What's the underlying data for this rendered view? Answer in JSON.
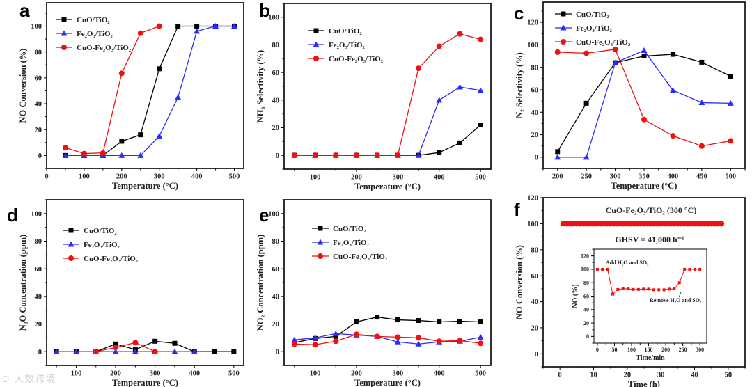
{
  "watermark": "大数跨境",
  "colors": {
    "CuO/TiO₂": "#000000",
    "Fe₂O₃/TiO₂": "#2b2bff",
    "CuO-Fe₂O₃/TiO₂": "#ee1111"
  },
  "chart_data": [
    {
      "id": "a",
      "letter": "a",
      "type": "line",
      "xlabel": "Temperature (°C)",
      "ylabel": "NO Conversion (%)",
      "xlim": [
        0,
        525
      ],
      "ylim": [
        -10,
        118
      ],
      "xticks": [
        0,
        100,
        200,
        300,
        400,
        500
      ],
      "yticks": [
        0,
        20,
        40,
        60,
        80,
        100
      ],
      "legend": "top-left",
      "series": [
        {
          "name": "CuO/TiO₂",
          "marker": "square",
          "x": [
            50,
            100,
            150,
            200,
            250,
            300,
            350,
            400,
            450,
            500
          ],
          "y": [
            0,
            0,
            0,
            11,
            16,
            67,
            100,
            100,
            100,
            100
          ]
        },
        {
          "name": "Fe₂O₃/TiO₂",
          "marker": "triangle",
          "x": [
            50,
            100,
            150,
            200,
            250,
            300,
            350,
            400,
            450,
            500
          ],
          "y": [
            0,
            0,
            0,
            0,
            0,
            15,
            45,
            96,
            100,
            100
          ]
        },
        {
          "name": "CuO-Fe₂O₃/TiO₂",
          "marker": "circle",
          "x": [
            50,
            100,
            150,
            200,
            250,
            300
          ],
          "y": [
            6,
            1.5,
            2,
            63.5,
            94.5,
            100
          ]
        }
      ]
    },
    {
      "id": "b",
      "letter": "b",
      "type": "line",
      "xlabel": "Temperature (°C)",
      "ylabel": "NH₃ Selectivity (%)",
      "xlim": [
        25,
        525
      ],
      "ylim": [
        -10,
        110
      ],
      "xticks": [
        100,
        200,
        300,
        400,
        500
      ],
      "yticks": [
        0,
        20,
        40,
        60,
        80,
        100
      ],
      "legend": "top-left",
      "series": [
        {
          "name": "CuO/TiO₂",
          "marker": "square",
          "x": [
            50,
            100,
            150,
            200,
            250,
            300,
            350,
            400,
            450,
            500
          ],
          "y": [
            0,
            0,
            0,
            0,
            0,
            0,
            0,
            2,
            9,
            22
          ]
        },
        {
          "name": "Fe₂O₃/TiO₂",
          "marker": "triangle",
          "x": [
            50,
            100,
            150,
            200,
            250,
            300,
            350,
            400,
            450,
            500
          ],
          "y": [
            0,
            0,
            0,
            0,
            0,
            0,
            0,
            40,
            49.5,
            47
          ]
        },
        {
          "name": "CuO-Fe₂O₃/TiO₂",
          "marker": "circle",
          "x": [
            50,
            100,
            150,
            200,
            250,
            300,
            350,
            400,
            450,
            500
          ],
          "y": [
            0,
            0,
            0,
            0,
            0,
            0,
            63,
            79,
            88,
            84
          ]
        }
      ]
    },
    {
      "id": "c",
      "letter": "c",
      "type": "line",
      "xlabel": "Temperature (°C)",
      "ylabel": "N₂ Selectivity (%)",
      "xlim": [
        175,
        525
      ],
      "ylim": [
        -10,
        138
      ],
      "xticks": [
        200,
        250,
        300,
        350,
        400,
        450,
        500
      ],
      "yticks": [
        0,
        20,
        40,
        60,
        80,
        100,
        120
      ],
      "legend": "top-left",
      "series": [
        {
          "name": "CuO/TiO₂",
          "marker": "square",
          "x": [
            200,
            250,
            300,
            350,
            400,
            450,
            500
          ],
          "y": [
            5,
            48,
            84,
            90,
            91.5,
            84.5,
            72
          ]
        },
        {
          "name": "Fe₂O₃/TiO₂",
          "marker": "triangle",
          "x": [
            200,
            250,
            300,
            350,
            400,
            450,
            500
          ],
          "y": [
            0,
            0,
            84,
            95,
            59.5,
            48.5,
            48
          ]
        },
        {
          "name": "CuO-Fe₂O₃/TiO₂",
          "marker": "circle",
          "x": [
            200,
            250,
            300,
            350,
            400,
            450,
            500
          ],
          "y": [
            93.5,
            92.5,
            96,
            33.5,
            19,
            10,
            14.5
          ]
        }
      ]
    },
    {
      "id": "d",
      "letter": "d",
      "type": "line",
      "xlabel": "Temperature (°C)",
      "ylabel": "N₂O Concentration (ppm)",
      "xlim": [
        25,
        525
      ],
      "ylim": [
        -10,
        110
      ],
      "xticks": [
        100,
        200,
        300,
        400,
        500
      ],
      "yticks": [
        0,
        20,
        40,
        60,
        80,
        100
      ],
      "legend": "top-left",
      "series": [
        {
          "name": "CuO/TiO₂",
          "marker": "square",
          "x": [
            50,
            100,
            150,
            200,
            250,
            300,
            350,
            400,
            450,
            500
          ],
          "y": [
            0,
            0,
            0,
            5.5,
            1.5,
            7.5,
            6,
            0,
            0,
            0
          ]
        },
        {
          "name": "Fe₂O₃/TiO₂",
          "marker": "triangle",
          "x": [
            50,
            100,
            150,
            200,
            250,
            300,
            350,
            400
          ],
          "y": [
            0,
            0,
            0,
            0,
            0,
            0,
            0,
            0
          ]
        },
        {
          "name": "CuO-Fe₂O₃/TiO₂",
          "marker": "circle",
          "x": [
            150,
            200,
            250,
            300
          ],
          "y": [
            0,
            3,
            6.5,
            0
          ]
        }
      ]
    },
    {
      "id": "e",
      "letter": "e",
      "type": "line",
      "xlabel": "Temperature (°C)",
      "ylabel": "NO₂ Concentration (ppm)",
      "xlim": [
        25,
        525
      ],
      "ylim": [
        -10,
        110
      ],
      "xticks": [
        100,
        200,
        300,
        400,
        500
      ],
      "yticks": [
        0,
        20,
        40,
        60,
        80,
        100
      ],
      "legend": "top-left",
      "series": [
        {
          "name": "CuO/TiO₂",
          "marker": "square",
          "x": [
            50,
            100,
            150,
            200,
            250,
            300,
            350,
            400,
            450,
            500
          ],
          "y": [
            6.5,
            9.5,
            11,
            21.5,
            25,
            23,
            22.5,
            21.5,
            22,
            21.5
          ]
        },
        {
          "name": "Fe₂O₃/TiO₂",
          "marker": "triangle",
          "x": [
            50,
            100,
            150,
            200,
            250,
            300,
            350,
            400,
            450,
            500
          ],
          "y": [
            8.5,
            10,
            13,
            12,
            11,
            7,
            5.5,
            7,
            7.5,
            10.5
          ]
        },
        {
          "name": "CuO-Fe₂O₃/TiO₂",
          "marker": "circle",
          "x": [
            50,
            100,
            150,
            200,
            250,
            300,
            350,
            400,
            450,
            500
          ],
          "y": [
            5.5,
            5,
            7.5,
            12.5,
            11,
            10.5,
            10,
            7.5,
            8,
            6
          ]
        }
      ]
    },
    {
      "id": "f",
      "letter": "f",
      "type": "line",
      "xlabel": "Time (h)",
      "ylabel": "NO Conversion (%)",
      "xlim": [
        -5,
        55
      ],
      "ylim": [
        -10,
        120
      ],
      "xticks": [
        0,
        10,
        20,
        30,
        40,
        50
      ],
      "yticks": [
        0,
        20,
        40,
        60,
        80,
        100,
        120
      ],
      "annotations": [
        "CuO-Fe₂O₃/TiO₂ (300 °C)",
        "GHSV = 41,000 h⁻¹"
      ],
      "series": [
        {
          "name": "CuO-Fe₂O₃/TiO₂",
          "marker": "circle",
          "x": [
            1,
            2,
            3,
            4,
            5,
            6,
            7,
            8,
            9,
            10,
            11,
            12,
            13,
            14,
            15,
            16,
            17,
            18,
            19,
            20,
            21,
            22,
            23,
            24,
            25,
            26,
            27,
            28,
            29,
            30,
            31,
            32,
            33,
            34,
            35,
            36,
            37,
            38,
            39,
            40,
            41,
            42,
            43,
            44,
            45,
            46,
            47,
            48
          ],
          "y": [
            100,
            100,
            100,
            100,
            100,
            100,
            100,
            100,
            100,
            100,
            100,
            100,
            100,
            100,
            100,
            100,
            100,
            100,
            100,
            100,
            100,
            100,
            100,
            100,
            100,
            100,
            100,
            100,
            100,
            100,
            100,
            100,
            100,
            100,
            100,
            100,
            100,
            100,
            100,
            100,
            100,
            100,
            100,
            100,
            100,
            100,
            100,
            100
          ]
        }
      ]
    },
    {
      "id": "f-inset",
      "type": "line",
      "xlabel": "Time/min",
      "ylabel": "NO (%)",
      "xlim": [
        -10,
        320
      ],
      "ylim": [
        -10,
        130
      ],
      "xticks": [
        0,
        50,
        100,
        150,
        200,
        250,
        300
      ],
      "yticks": [
        0,
        20,
        40,
        60,
        80,
        100,
        120
      ],
      "annotations": [
        "Add H₂O and SO₂",
        "Remove H₂O and SO₂"
      ],
      "series": [
        {
          "name": "CuO-Fe₂O₃/TiO₂",
          "marker": "smallsquare",
          "x": [
            0,
            15,
            30,
            45,
            60,
            75,
            90,
            105,
            120,
            135,
            150,
            165,
            180,
            195,
            210,
            225,
            240,
            255,
            270,
            285,
            300
          ],
          "y": [
            100,
            100,
            100,
            63,
            70,
            71,
            71,
            70,
            70,
            70.5,
            70.5,
            69.5,
            69.5,
            69.5,
            70.5,
            71,
            80,
            100,
            100,
            100,
            100
          ]
        }
      ]
    }
  ]
}
